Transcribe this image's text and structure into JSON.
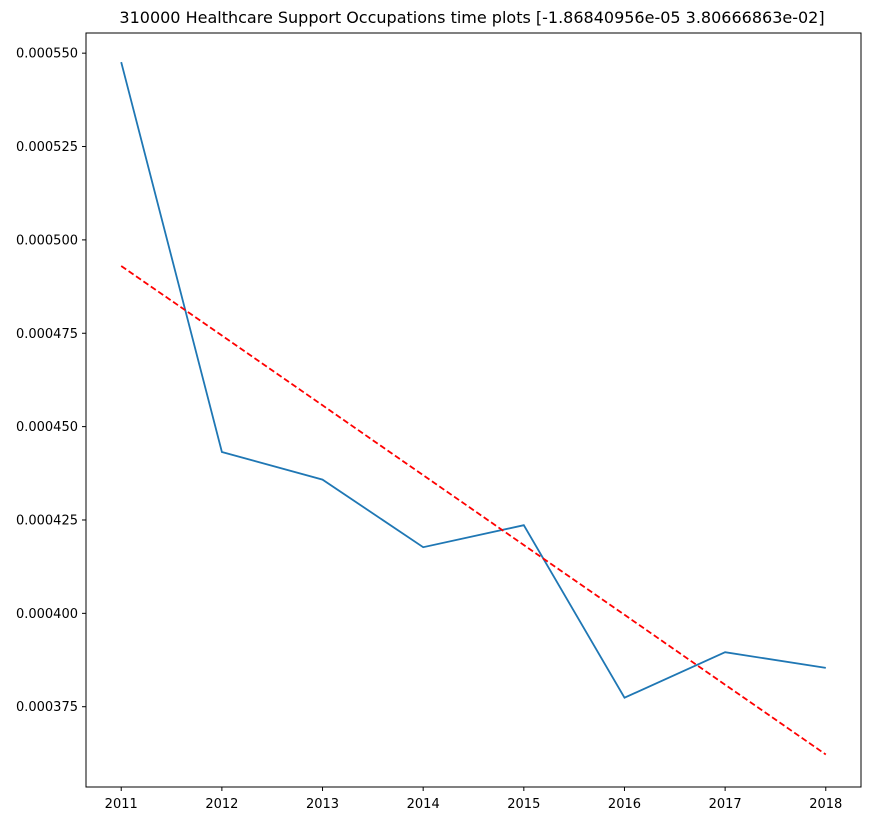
{
  "chart_data": {
    "type": "line",
    "title": "310000 Healthcare Support Occupations time plots [-1.86840956e-05  3.80666863e-02]",
    "xlabel": "",
    "ylabel": "",
    "x": [
      2011,
      2012,
      2013,
      2014,
      2015,
      2016,
      2017,
      2018
    ],
    "xticks": [
      "2011",
      "2012",
      "2013",
      "2014",
      "2015",
      "2016",
      "2017",
      "2018"
    ],
    "yticks": [
      "0.000375",
      "0.000400",
      "0.000425",
      "0.000450",
      "0.000475",
      "0.000500",
      "0.000525",
      "0.000550"
    ],
    "ytick_values": [
      0.000375,
      0.0004,
      0.000425,
      0.00045,
      0.000475,
      0.0005,
      0.000525,
      0.00055
    ],
    "xlim": [
      2010.65,
      2018.35
    ],
    "ylim": [
      0.0003535,
      0.0005554
    ],
    "grid": false,
    "series": [
      {
        "values": [
          0.0005476,
          0.0004432,
          0.0004358,
          0.0004177,
          0.0004236,
          0.0003774,
          0.0003896,
          0.0003854
        ],
        "color": "#1f77b4",
        "style": "solid"
      },
      {
        "values": [
          0.000493,
          0.0004744,
          0.0004557,
          0.000437,
          0.0004183,
          0.0003996,
          0.0003809,
          0.0003622
        ],
        "color": "#ff0000",
        "style": "dashed"
      }
    ]
  }
}
